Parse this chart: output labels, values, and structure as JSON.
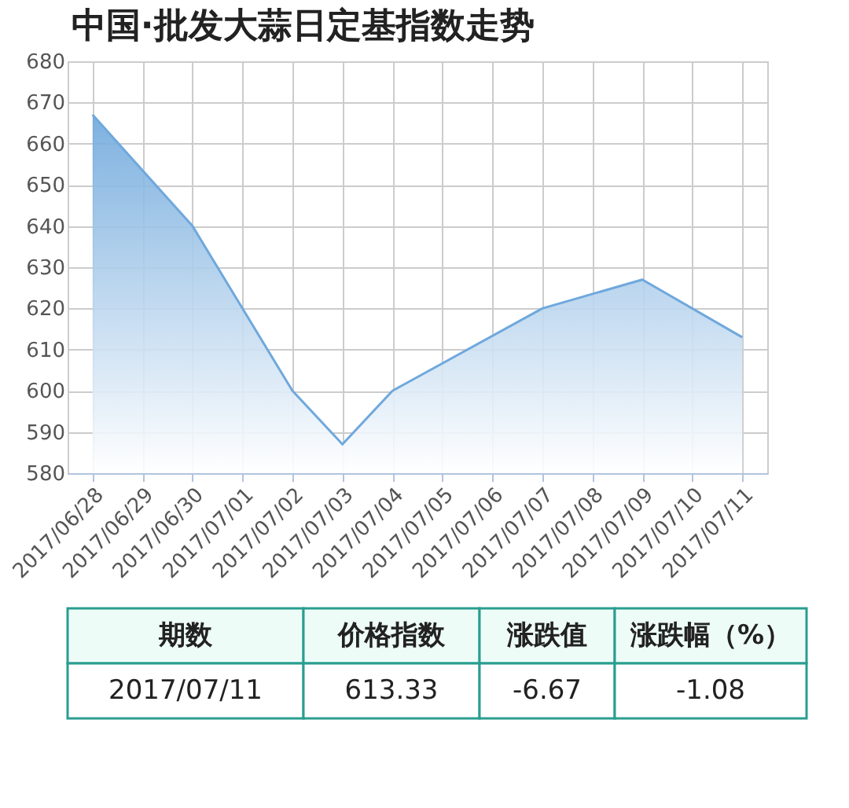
{
  "chart_data": {
    "type": "area",
    "title": "中国·批发大蒜日定基指数走势",
    "categories": [
      "2017/06/28",
      "2017/06/29",
      "2017/06/30",
      "2017/07/01",
      "2017/07/02",
      "2017/07/03",
      "2017/07/04",
      "2017/07/05",
      "2017/07/06",
      "2017/07/07",
      "2017/07/08",
      "2017/07/09",
      "2017/07/10",
      "2017/07/11"
    ],
    "series": [
      {
        "color": "#6fa8dc",
        "values": [
          667,
          null,
          640,
          null,
          600,
          587,
          600,
          null,
          null,
          620,
          null,
          627,
          null,
          613
        ]
      }
    ],
    "ylim": [
      580,
      680
    ],
    "yticks": [
      580,
      590,
      600,
      610,
      620,
      630,
      640,
      650,
      660,
      670,
      680
    ],
    "grid": true,
    "annotations": [
      "期数",
      "价格指数",
      "涨跌值",
      "涨跌幅（%）",
      "2017/07/11",
      "613.33",
      "-6.67",
      "-1.08"
    ]
  }
}
